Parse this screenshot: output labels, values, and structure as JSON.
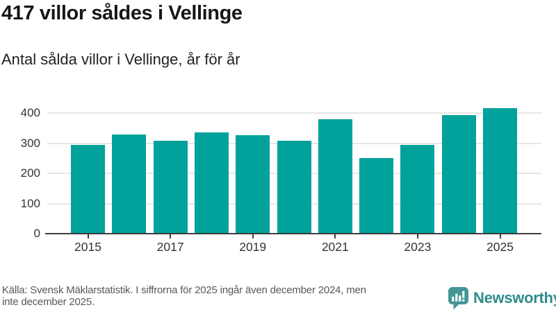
{
  "header": {
    "title": "417 villor såldes i Vellinge",
    "subtitle": "Antal sålda villor i Vellinge, år för år"
  },
  "chart_data": {
    "type": "bar",
    "title": "417 villor såldes i Vellinge",
    "subtitle": "Antal sålda villor i Vellinge, år för år",
    "categories": [
      "2015",
      "2016",
      "2017",
      "2018",
      "2019",
      "2020",
      "2021",
      "2022",
      "2023",
      "2024",
      "2025"
    ],
    "values": [
      295,
      329,
      309,
      336,
      327,
      308,
      380,
      252,
      295,
      394,
      417
    ],
    "series_name": "Antal sålda villor",
    "xlabel": "",
    "ylabel": "",
    "ylim": [
      0,
      440
    ],
    "yticks": [
      0,
      100,
      200,
      300,
      400
    ],
    "xtick_labels": [
      "2015",
      "2017",
      "2019",
      "2021",
      "2023",
      "2025"
    ],
    "grid": "horizontal-behind-bars",
    "legend": "none",
    "bar_color": "#00a29b"
  },
  "footer": {
    "source_lines": [
      "Källa: Svensk Mäklarstatistik. I siffrorna för 2025 ingår även december 2024, men",
      "inte december 2025."
    ],
    "logo_text": "Newsworthy"
  },
  "colors": {
    "bar": "#00a29b",
    "gridline": "#e6e6e6",
    "axis_line": "#3d3d3d",
    "title_text": "#171717",
    "axis_text": "#333333",
    "source_text": "#58585a",
    "logo_icon": "#449595",
    "logo_text": "#2f8c8c"
  }
}
